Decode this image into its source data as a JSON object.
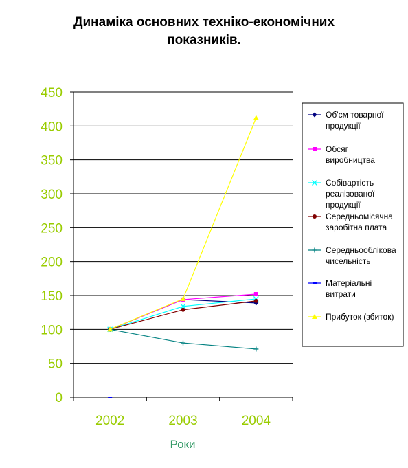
{
  "chart_data": {
    "type": "line",
    "title_line1": "Динаміка основних техніко-економічних",
    "title_line2": "показників.",
    "xlabel": "Роки",
    "ylabel": "",
    "categories": [
      "2002",
      "2003",
      "2004"
    ],
    "ylim": [
      0,
      450
    ],
    "yticks": [
      "0",
      "50",
      "100",
      "150",
      "200",
      "250",
      "300",
      "350",
      "400",
      "450"
    ],
    "grid": "horizontal",
    "legend_position": "right",
    "series": [
      {
        "name": "Об'єм товарної продукції",
        "legend_lines": [
          "Об'єм товарної",
          "продукції"
        ],
        "values": [
          100,
          144,
          139
        ],
        "color": "#000080",
        "marker": "diamond"
      },
      {
        "name": "Обсяг виробництва",
        "legend_lines": [
          "Обсяг",
          "виробництва"
        ],
        "values": [
          100,
          144,
          152
        ],
        "color": "#ff00ff",
        "marker": "square"
      },
      {
        "name": "Собівартість реалізованої продукції",
        "legend_lines": [
          "Собівартість",
          "реалізованої",
          "продукції"
        ],
        "values": [
          100,
          134,
          145
        ],
        "color": "#00ffff",
        "marker": "x"
      },
      {
        "name": "Середньомісячна заробітна плата",
        "legend_lines": [
          "Середньомісячна",
          "заробітна плата"
        ],
        "values": [
          100,
          129,
          142
        ],
        "color": "#800000",
        "marker": "circle"
      },
      {
        "name": "Середньооблікова чисельність",
        "legend_lines": [
          "Середньооблікова",
          "чисельність"
        ],
        "values": [
          100,
          80,
          71
        ],
        "color": "#008080",
        "marker": "plus"
      },
      {
        "name": "Матеріальні витрати",
        "legend_lines": [
          "Матеріальні",
          "витрати"
        ],
        "values": [
          0,
          null,
          null
        ],
        "color": "#0000ff",
        "marker": "dash"
      },
      {
        "name": "Прибуток (збиток)",
        "legend_lines": [
          "Прибуток (збиток)"
        ],
        "values": [
          100,
          145,
          412
        ],
        "color": "#ffff00",
        "marker": "triangle"
      }
    ]
  }
}
